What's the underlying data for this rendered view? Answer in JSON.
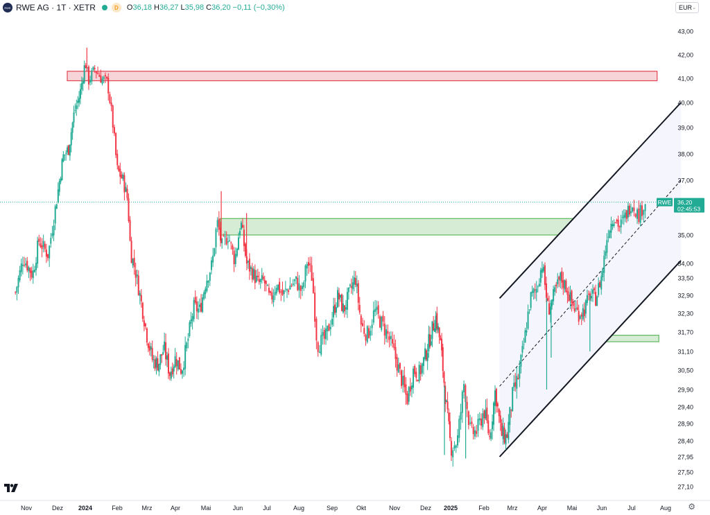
{
  "header": {
    "symbol_title": "RWE AG · 1T · XETR",
    "interval_badge": "D",
    "logo_text": "RWE",
    "ohlc": [
      {
        "key": "O",
        "value": "36,18"
      },
      {
        "key": "H",
        "value": "36,27"
      },
      {
        "key": "L",
        "value": "35,98"
      },
      {
        "key": "C",
        "value": "36,20"
      },
      {
        "key": "",
        "value": "−0,11 (−0,30%)"
      }
    ]
  },
  "currency": "EUR",
  "price_label": {
    "symbol": "RWE",
    "price": "36,20",
    "countdown": "02:45:53"
  },
  "colors": {
    "up": "#22ab94",
    "down": "#f23645",
    "resistance_fill": "#f6d4d8",
    "resistance_stroke": "#e2434f",
    "support_fill": "#d7ecd5",
    "support_stroke": "#5cb85c",
    "channel_fill": "#f4f5fd",
    "line": "#131722"
  },
  "chart_data": {
    "type": "candlestick",
    "x_ticks": [
      {
        "label": "Nov",
        "t": 0,
        "bold": false
      },
      {
        "label": "Dez",
        "t": 1,
        "bold": false
      },
      {
        "label": "2024",
        "t": 2,
        "bold": true
      },
      {
        "label": "Feb",
        "t": 3,
        "bold": false
      },
      {
        "label": "Mrz",
        "t": 4,
        "bold": false
      },
      {
        "label": "Apr",
        "t": 5,
        "bold": false
      },
      {
        "label": "Mai",
        "t": 6,
        "bold": false
      },
      {
        "label": "Jun",
        "t": 7,
        "bold": false
      },
      {
        "label": "Jul",
        "t": 8,
        "bold": false
      },
      {
        "label": "Aug",
        "t": 9,
        "bold": false
      },
      {
        "label": "Sep",
        "t": 10,
        "bold": false
      },
      {
        "label": "Okt",
        "t": 11,
        "bold": false
      },
      {
        "label": "Nov",
        "t": 12,
        "bold": false
      },
      {
        "label": "Dez",
        "t": 13,
        "bold": false
      },
      {
        "label": "2025",
        "t": 14,
        "bold": true
      },
      {
        "label": "Feb",
        "t": 15,
        "bold": false
      },
      {
        "label": "Mrz",
        "t": 16,
        "bold": false
      },
      {
        "label": "Apr",
        "t": 17,
        "bold": false
      },
      {
        "label": "Mai",
        "t": 18,
        "bold": false
      },
      {
        "label": "Jun",
        "t": 19,
        "bold": false
      },
      {
        "label": "Jul",
        "t": 20,
        "bold": false
      },
      {
        "label": "Aug",
        "t": 21,
        "bold": false
      }
    ],
    "y_ticks": [
      {
        "label": "43,00",
        "v": 43.0
      },
      {
        "label": "42,00",
        "v": 42.0
      },
      {
        "label": "41,00",
        "v": 41.0
      },
      {
        "label": "40,00",
        "v": 40.0
      },
      {
        "label": "39,00",
        "v": 39.0
      },
      {
        "label": "38,00",
        "v": 38.0
      },
      {
        "label": "37,00",
        "v": 37.0
      },
      {
        "label": "35,00",
        "v": 35.0
      },
      {
        "label": "34,00",
        "v": 34.0
      },
      {
        "label": "33,50",
        "v": 33.5
      },
      {
        "label": "32,90",
        "v": 32.9
      },
      {
        "label": "32,30",
        "v": 32.3
      },
      {
        "label": "31,70",
        "v": 31.7
      },
      {
        "label": "31,10",
        "v": 31.1
      },
      {
        "label": "30,50",
        "v": 30.5
      },
      {
        "label": "29,90",
        "v": 29.9
      },
      {
        "label": "29,40",
        "v": 29.4
      },
      {
        "label": "28,90",
        "v": 28.9
      },
      {
        "label": "28,40",
        "v": 28.4
      },
      {
        "label": "27,95",
        "v": 27.95
      },
      {
        "label": "27,50",
        "v": 27.5
      },
      {
        "label": "27,10",
        "v": 27.1
      }
    ],
    "price_path": [
      [
        -0.35,
        33.0
      ],
      [
        -0.1,
        34.2
      ],
      [
        0.2,
        33.6
      ],
      [
        0.4,
        34.8
      ],
      [
        0.7,
        34.3
      ],
      [
        1.0,
        36.5
      ],
      [
        1.2,
        37.9
      ],
      [
        1.4,
        38.2
      ],
      [
        1.6,
        39.6
      ],
      [
        1.8,
        40.3
      ],
      [
        2.0,
        41.7
      ],
      [
        2.1,
        40.9
      ],
      [
        2.3,
        41.4
      ],
      [
        2.5,
        41.0
      ],
      [
        2.7,
        40.8
      ],
      [
        2.85,
        39.3
      ],
      [
        3.0,
        37.4
      ],
      [
        3.2,
        37.0
      ],
      [
        3.35,
        36.3
      ],
      [
        3.45,
        34.4
      ],
      [
        3.6,
        33.8
      ],
      [
        3.8,
        32.7
      ],
      [
        4.0,
        31.6
      ],
      [
        4.2,
        30.8
      ],
      [
        4.4,
        30.7
      ],
      [
        4.6,
        31.2
      ],
      [
        4.8,
        30.4
      ],
      [
        5.0,
        30.9
      ],
      [
        5.2,
        30.5
      ],
      [
        5.4,
        31.4
      ],
      [
        5.6,
        32.5
      ],
      [
        5.8,
        32.4
      ],
      [
        6.0,
        33.4
      ],
      [
        6.2,
        34.0
      ],
      [
        6.35,
        35.5
      ],
      [
        6.5,
        34.6
      ],
      [
        6.7,
        35.0
      ],
      [
        6.9,
        34.1
      ],
      [
        7.1,
        35.5
      ],
      [
        7.3,
        34.0
      ],
      [
        7.5,
        33.7
      ],
      [
        7.7,
        33.3
      ],
      [
        7.9,
        33.4
      ],
      [
        8.1,
        32.7
      ],
      [
        8.3,
        33.3
      ],
      [
        8.5,
        32.9
      ],
      [
        8.7,
        33.2
      ],
      [
        8.9,
        33.4
      ],
      [
        9.1,
        33.0
      ],
      [
        9.25,
        34.1
      ],
      [
        9.4,
        33.5
      ],
      [
        9.55,
        31.3
      ],
      [
        9.8,
        31.5
      ],
      [
        10.0,
        32.2
      ],
      [
        10.2,
        32.9
      ],
      [
        10.4,
        32.4
      ],
      [
        10.6,
        33.0
      ],
      [
        10.8,
        33.5
      ],
      [
        11.0,
        31.9
      ],
      [
        11.2,
        31.6
      ],
      [
        11.4,
        32.4
      ],
      [
        11.6,
        32.0
      ],
      [
        11.8,
        31.6
      ],
      [
        12.0,
        31.0
      ],
      [
        12.2,
        30.3
      ],
      [
        12.4,
        29.6
      ],
      [
        12.6,
        30.5
      ],
      [
        12.8,
        30.4
      ],
      [
        13.0,
        31.0
      ],
      [
        13.2,
        31.6
      ],
      [
        13.4,
        32.2
      ],
      [
        13.6,
        31.3
      ],
      [
        13.8,
        29.6
      ],
      [
        14.0,
        28.2
      ],
      [
        14.2,
        28.4
      ],
      [
        14.4,
        30.1
      ],
      [
        14.6,
        28.6
      ],
      [
        14.8,
        28.7
      ],
      [
        15.0,
        29.3
      ],
      [
        15.2,
        28.5
      ],
      [
        15.4,
        29.9
      ],
      [
        15.6,
        28.6
      ],
      [
        15.8,
        28.5
      ],
      [
        16.0,
        29.7
      ],
      [
        16.2,
        30.3
      ],
      [
        16.4,
        31.4
      ],
      [
        16.6,
        32.8
      ],
      [
        16.8,
        33.1
      ],
      [
        17.0,
        34.0
      ],
      [
        17.2,
        32.4
      ],
      [
        17.4,
        32.9
      ],
      [
        17.6,
        33.5
      ],
      [
        17.8,
        33.2
      ],
      [
        18.0,
        32.6
      ],
      [
        18.2,
        32.3
      ],
      [
        18.4,
        32.4
      ],
      [
        18.6,
        32.9
      ],
      [
        18.8,
        32.8
      ],
      [
        19.0,
        33.6
      ],
      [
        19.2,
        35.1
      ],
      [
        19.4,
        35.7
      ],
      [
        19.6,
        35.3
      ],
      [
        19.8,
        35.7
      ],
      [
        20.0,
        36.2
      ],
      [
        20.2,
        35.7
      ],
      [
        20.4,
        36.2
      ]
    ],
    "spikes": [
      {
        "t": 2.05,
        "v": 42.3
      },
      {
        "t": 6.48,
        "v": 36.6
      },
      {
        "t": 7.3,
        "v": 35.8
      },
      {
        "t": 13.75,
        "v": 28.0
      },
      {
        "t": 17.15,
        "v": 29.9
      },
      {
        "t": 17.3,
        "v": 30.9
      },
      {
        "t": 18.6,
        "v": 31.1
      },
      {
        "t": 14.45,
        "v": 27.9
      }
    ],
    "zones": [
      {
        "name": "resistance",
        "t1": 1.35,
        "t2": 20.75,
        "v_top": 41.3,
        "v_bottom": 40.9,
        "kind": "red"
      },
      {
        "name": "support-upper",
        "t1": 6.45,
        "t2": 20.8,
        "v_top": 35.6,
        "v_bottom": 35.0,
        "kind": "green"
      },
      {
        "name": "support-lower",
        "t1": 16.75,
        "t2": 20.8,
        "v_top": 31.6,
        "v_bottom": 31.4,
        "kind": "green"
      }
    ],
    "channel": {
      "upper": [
        [
          15.55,
          32.8
        ],
        [
          21.45,
          40.0
        ]
      ],
      "lower": [
        [
          15.55,
          27.95
        ],
        [
          21.45,
          34.1
        ]
      ],
      "mid": [
        [
          15.55,
          30.0
        ],
        [
          21.45,
          37.0
        ]
      ]
    },
    "last_price": 36.2
  }
}
